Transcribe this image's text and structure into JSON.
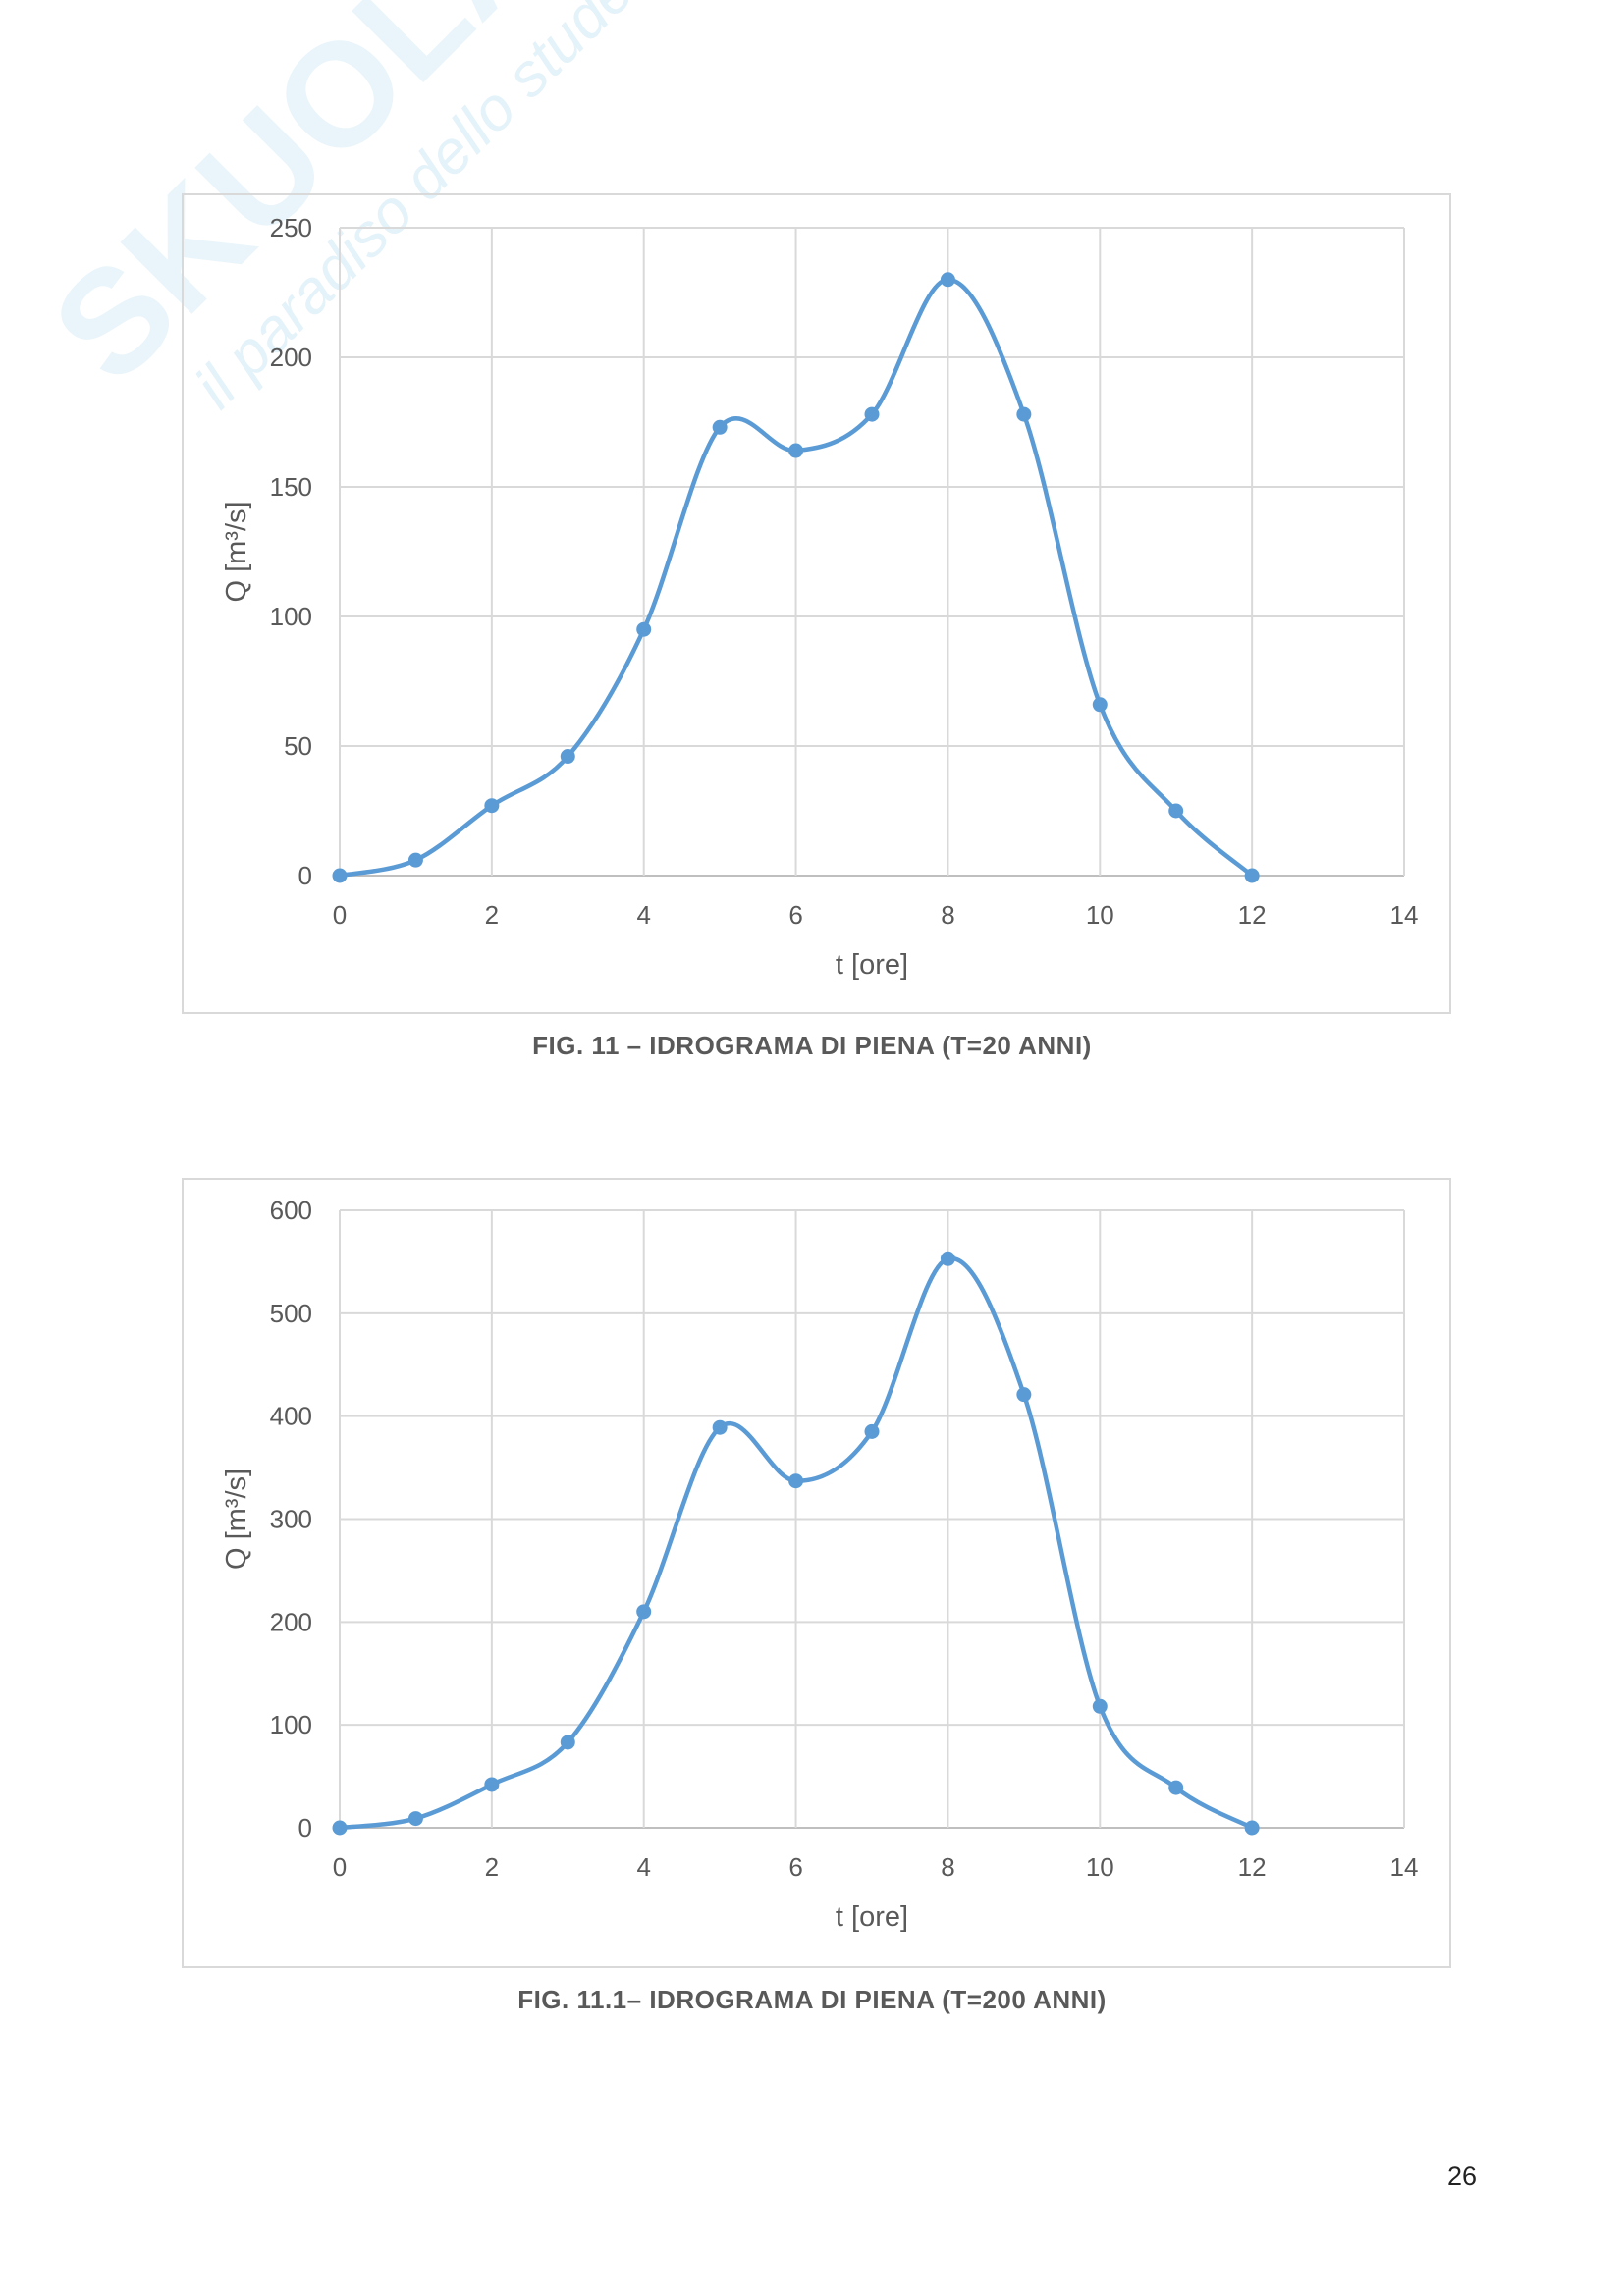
{
  "watermark": {
    "brand": "SKUOLA.net",
    "tagline": "il paradiso dello studente"
  },
  "page_number": "26",
  "chart_data": [
    {
      "type": "line",
      "smooth": true,
      "markers": true,
      "color": "#5b9bd5",
      "caption": "FIG. 11 – IDROGRAMA DI PIENA (T=20 ANNI)",
      "xlabel": "t [ore]",
      "ylabel": "Q [m³/s]",
      "xlim": [
        0,
        14
      ],
      "ylim": [
        0,
        250
      ],
      "xticks": [
        0,
        2,
        4,
        6,
        8,
        10,
        12,
        14
      ],
      "yticks": [
        0,
        50,
        100,
        150,
        200,
        250
      ],
      "grid": true,
      "x": [
        0,
        1,
        2,
        3,
        4,
        5,
        6,
        7,
        8,
        9,
        10,
        11,
        12
      ],
      "y": [
        0,
        6,
        27,
        46,
        95,
        173,
        164,
        178,
        230,
        178,
        66,
        25,
        0
      ]
    },
    {
      "type": "line",
      "smooth": true,
      "markers": true,
      "color": "#5b9bd5",
      "caption": "FIG. 11.1– IDROGRAMA DI PIENA (T=200 ANNI)",
      "xlabel": "t [ore]",
      "ylabel": "Q [m³/s]",
      "xlim": [
        0,
        14
      ],
      "ylim": [
        0,
        600
      ],
      "xticks": [
        0,
        2,
        4,
        6,
        8,
        10,
        12,
        14
      ],
      "yticks": [
        0,
        100,
        200,
        300,
        400,
        500,
        600
      ],
      "grid": true,
      "x": [
        0,
        1,
        2,
        3,
        4,
        5,
        6,
        7,
        8,
        9,
        10,
        11,
        12
      ],
      "y": [
        0,
        9,
        42,
        83,
        210,
        389,
        337,
        385,
        553,
        421,
        118,
        39,
        0
      ]
    }
  ]
}
